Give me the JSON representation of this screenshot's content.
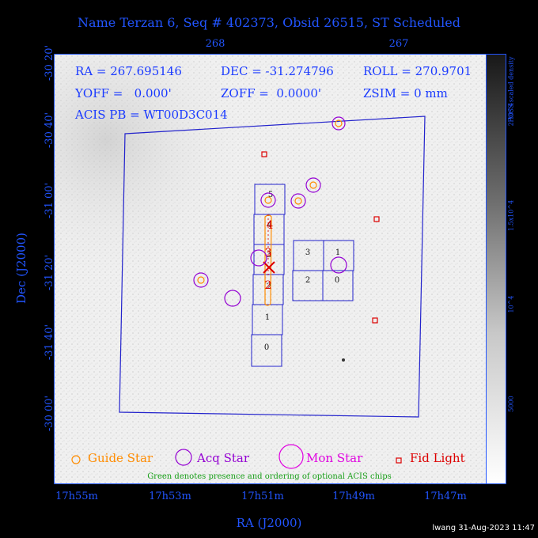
{
  "title": "Name Terzan 6, Seq # 402373, Obsid 26515, ST Scheduled",
  "top_axis_ticks": [
    "268",
    "267"
  ],
  "bottom_axis_ticks": [
    "17h55m",
    "17h53m",
    "17h51m",
    "17h49m",
    "17h47m"
  ],
  "left_axis_ticks": [
    "-30 20'",
    "-30 40'",
    "-31 00'",
    "-31 20'",
    "-31 40'",
    "-30 00'"
  ],
  "x_axis_label": "RA (J2000)",
  "y_axis_label": "Dec (J2000)",
  "info": {
    "ra": "RA = 267.695146",
    "dec": "DEC = -31.274796",
    "roll": "ROLL = 270.9701",
    "yoff": "YOFF =   0.000'",
    "zoff": "ZOFF =  0.0000'",
    "zsim": "ZSIM = 0 mm",
    "acis": "ACIS PB = WT00D3C014"
  },
  "chips": {
    "column": [
      "5",
      "4",
      "3",
      "2",
      "1",
      "0"
    ],
    "block": [
      "3",
      "1",
      "2",
      "0"
    ]
  },
  "colorbar": {
    "label": "POSS scaled density",
    "ticks": [
      "2.10^4",
      "1.5x10^4",
      "10^4",
      "5000"
    ]
  },
  "legend": {
    "guide": "Guide Star",
    "acq": "Acq Star",
    "mon": "Mon Star",
    "fid": "Fid Light"
  },
  "optional_note": "Green denotes presence and ordering of optional ACIS chips",
  "stamp": "lwang 31-Aug-2023 11:47",
  "colors": {
    "axis": "#2255ff",
    "guide": "#ff8c00",
    "acq": "#9400d3",
    "mon": "#e000e0",
    "fid": "#dd0000",
    "optional": "#19a019"
  }
}
